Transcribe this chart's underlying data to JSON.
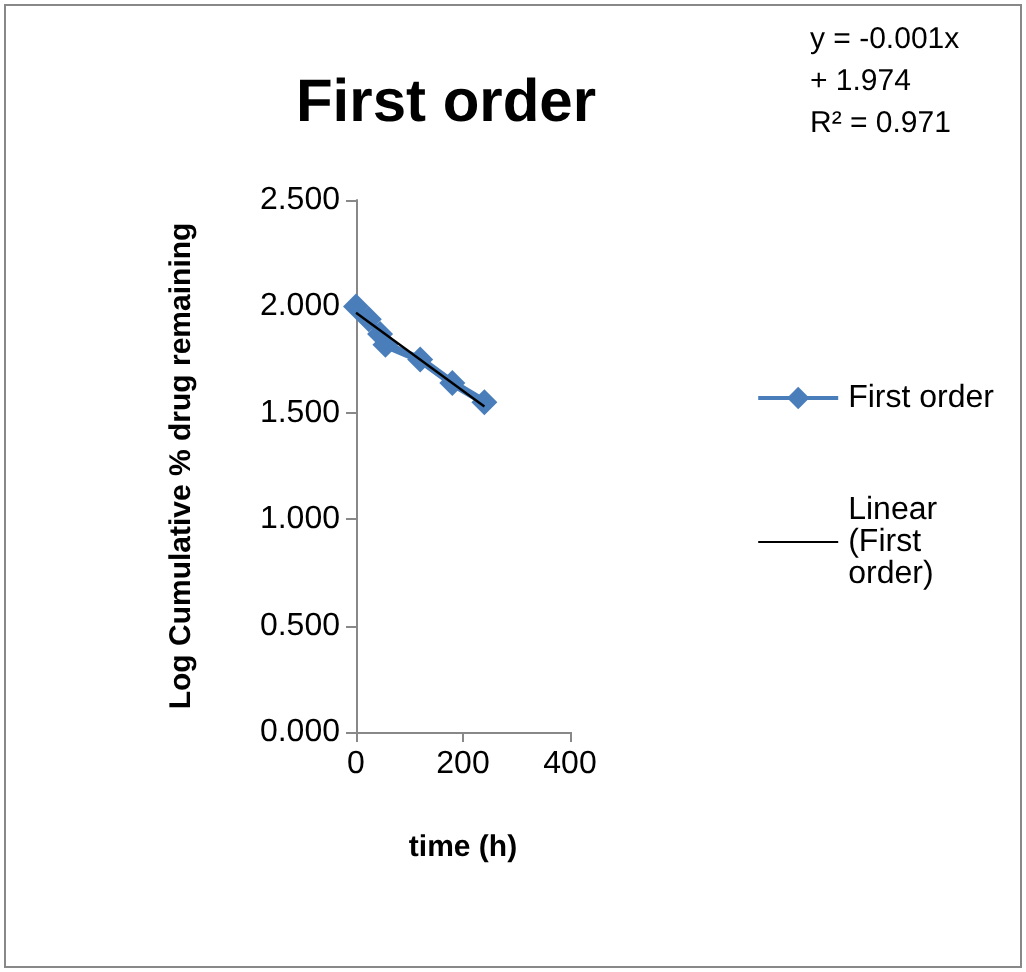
{
  "chart_data": {
    "type": "line",
    "title": "First order",
    "xlabel": "time (h)",
    "ylabel": "Log Cumulative % drug remaining",
    "annotations": [
      "y = -0.001x + 1.974",
      "R² = 0.971"
    ],
    "series": [
      {
        "name": "First order",
        "color": "#4a7ebb",
        "marker": "diamond",
        "x": [
          0,
          24,
          45,
          55,
          120,
          180,
          240
        ],
        "values": [
          2.0,
          1.94,
          1.87,
          1.82,
          1.75,
          1.64,
          1.55
        ]
      },
      {
        "name": "Linear (First order)",
        "color": "#000000",
        "marker": "none",
        "x": [
          0,
          240
        ],
        "values": [
          1.97,
          1.53
        ]
      }
    ],
    "xlim": [
      0,
      400
    ],
    "xticks": [
      0,
      200,
      400
    ],
    "ylim": [
      0,
      2.5
    ],
    "yticks": [
      {
        "value": 0,
        "label": "0.000"
      },
      {
        "value": 0.5,
        "label": "0.500"
      },
      {
        "value": 1,
        "label": "1.000"
      },
      {
        "value": 1.5,
        "label": "1.500"
      },
      {
        "value": 2,
        "label": "2.000"
      },
      {
        "value": 2.5,
        "label": "2.500"
      }
    ],
    "grid": false,
    "legend": "right"
  }
}
